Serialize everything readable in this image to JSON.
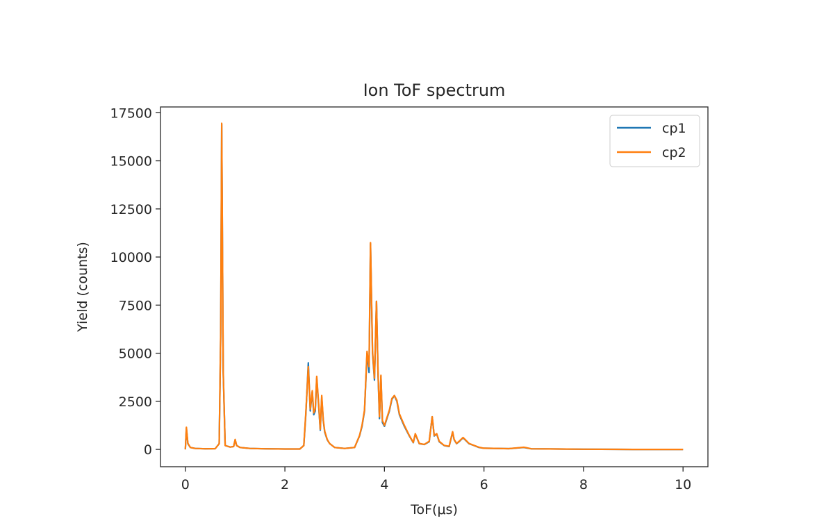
{
  "chart_data": {
    "type": "line",
    "title": "Ion ToF spectrum",
    "xlabel": "ToF(μs)",
    "ylabel": "Yield (counts)",
    "xlim": [
      -0.5,
      10.5
    ],
    "ylim": [
      -900,
      17800
    ],
    "xticks": [
      0,
      2,
      4,
      6,
      8,
      10
    ],
    "xtick_labels": [
      "0",
      "2",
      "4",
      "6",
      "8",
      "10"
    ],
    "yticks": [
      0,
      2500,
      5000,
      7500,
      10000,
      12500,
      15000,
      17500
    ],
    "ytick_labels": [
      "0",
      "2500",
      "5000",
      "7500",
      "10000",
      "12500",
      "15000",
      "17500"
    ],
    "grid": false,
    "legend": "top-right",
    "series": [
      {
        "name": "cp1",
        "color": "#1f77b4",
        "x": [
          0,
          0.02,
          0.05,
          0.1,
          0.2,
          0.4,
          0.6,
          0.68,
          0.71,
          0.73,
          0.76,
          0.8,
          0.9,
          0.97,
          1.0,
          1.03,
          1.1,
          1.3,
          1.6,
          2.0,
          2.3,
          2.38,
          2.42,
          2.47,
          2.51,
          2.55,
          2.58,
          2.61,
          2.64,
          2.68,
          2.71,
          2.74,
          2.77,
          2.8,
          2.85,
          2.9,
          3.0,
          3.2,
          3.4,
          3.5,
          3.55,
          3.6,
          3.65,
          3.69,
          3.72,
          3.76,
          3.8,
          3.84,
          3.87,
          3.9,
          3.93,
          3.96,
          4.0,
          4.05,
          4.1,
          4.15,
          4.2,
          4.25,
          4.3,
          4.35,
          4.4,
          4.5,
          4.58,
          4.62,
          4.7,
          4.8,
          4.9,
          4.96,
          5.0,
          5.05,
          5.1,
          5.2,
          5.3,
          5.37,
          5.4,
          5.45,
          5.5,
          5.58,
          5.62,
          5.7,
          5.8,
          5.9,
          6.0,
          6.5,
          6.8,
          6.85,
          6.95,
          7.5,
          8.0,
          9.0,
          10.0
        ],
        "y": [
          0,
          1100,
          300,
          100,
          50,
          30,
          40,
          300,
          6000,
          16900,
          4000,
          200,
          120,
          150,
          500,
          200,
          100,
          50,
          30,
          20,
          20,
          200,
          1800,
          4500,
          2000,
          3000,
          1800,
          2000,
          3700,
          2200,
          1000,
          2700,
          1500,
          900,
          500,
          300,
          100,
          50,
          100,
          700,
          1200,
          2000,
          5000,
          4000,
          10700,
          5000,
          3600,
          7700,
          4000,
          1600,
          3800,
          1400,
          1200,
          1600,
          2000,
          2600,
          2800,
          2500,
          1800,
          1500,
          1200,
          700,
          350,
          800,
          300,
          250,
          400,
          1700,
          700,
          800,
          400,
          200,
          150,
          900,
          500,
          300,
          400,
          600,
          500,
          300,
          200,
          100,
          60,
          40,
          100,
          80,
          30,
          20,
          10,
          0,
          0
        ]
      },
      {
        "name": "cp2",
        "color": "#ff7f0e",
        "x": [
          0,
          0.02,
          0.05,
          0.1,
          0.2,
          0.4,
          0.6,
          0.68,
          0.71,
          0.73,
          0.76,
          0.8,
          0.9,
          0.97,
          1.0,
          1.03,
          1.1,
          1.3,
          1.6,
          2.0,
          2.3,
          2.38,
          2.42,
          2.47,
          2.51,
          2.55,
          2.58,
          2.61,
          2.64,
          2.68,
          2.71,
          2.74,
          2.77,
          2.8,
          2.85,
          2.9,
          3.0,
          3.2,
          3.4,
          3.5,
          3.55,
          3.6,
          3.65,
          3.69,
          3.72,
          3.76,
          3.8,
          3.84,
          3.87,
          3.9,
          3.93,
          3.96,
          4.0,
          4.05,
          4.1,
          4.15,
          4.2,
          4.25,
          4.3,
          4.35,
          4.4,
          4.5,
          4.58,
          4.62,
          4.7,
          4.8,
          4.9,
          4.96,
          5.0,
          5.05,
          5.1,
          5.2,
          5.3,
          5.37,
          5.4,
          5.45,
          5.5,
          5.58,
          5.62,
          5.7,
          5.8,
          5.9,
          6.0,
          6.5,
          6.8,
          6.85,
          6.95,
          7.5,
          8.0,
          9.0,
          10.0
        ],
        "y": [
          0,
          1150,
          320,
          100,
          50,
          30,
          40,
          300,
          6100,
          16950,
          4100,
          200,
          120,
          150,
          520,
          200,
          100,
          50,
          30,
          20,
          20,
          200,
          1900,
          4300,
          2100,
          3050,
          1900,
          2100,
          3800,
          2300,
          1050,
          2800,
          1550,
          950,
          520,
          300,
          100,
          50,
          100,
          720,
          1250,
          2050,
          5100,
          4300,
          10750,
          5100,
          3700,
          7700,
          4100,
          1700,
          3850,
          1500,
          1250,
          1650,
          2050,
          2650,
          2800,
          2550,
          1850,
          1550,
          1250,
          720,
          360,
          820,
          310,
          260,
          420,
          1700,
          720,
          820,
          420,
          210,
          160,
          920,
          520,
          310,
          420,
          620,
          520,
          310,
          210,
          110,
          60,
          40,
          110,
          90,
          30,
          20,
          10,
          0,
          0
        ]
      }
    ]
  }
}
